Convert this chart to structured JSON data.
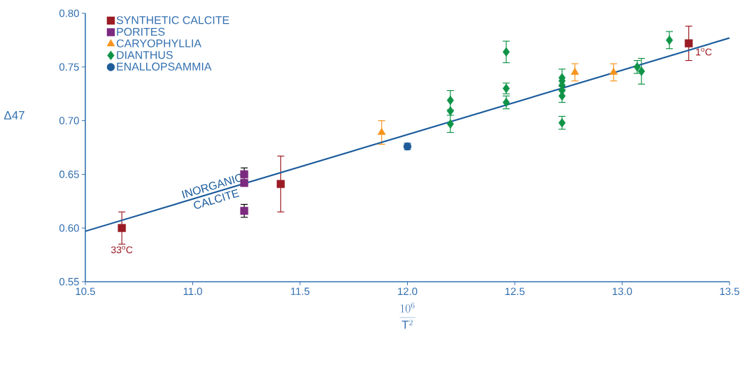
{
  "chart_data": {
    "type": "scatter",
    "xlabel": "\\frac{10^{6}}{\\mathrm{T}^{2}}",
    "ylabel": "Δ47",
    "xlim": [
      10.5,
      13.5
    ],
    "ylim": [
      0.55,
      0.8
    ],
    "xticks": [
      {
        "value": 10.5,
        "label": "10.5"
      },
      {
        "value": 11,
        "label": "11.0"
      },
      {
        "value": 11.5,
        "label": "11.5"
      },
      {
        "value": 12,
        "label": "12.0"
      },
      {
        "value": 12.5,
        "label": "12.5"
      },
      {
        "value": 13,
        "label": "13.0"
      },
      {
        "value": 13.5,
        "label": "13.5"
      }
    ],
    "yticks": [
      {
        "value": 0.55,
        "label": "0.55"
      },
      {
        "value": 0.6,
        "label": "0.60"
      },
      {
        "value": 0.65,
        "label": "0.65"
      },
      {
        "value": 0.7,
        "label": "0.70"
      },
      {
        "value": 0.75,
        "label": "0.75"
      },
      {
        "value": 0.8,
        "label": "0.80"
      }
    ],
    "grid": false,
    "legend": "top left",
    "series": [
      {
        "name": "SYNTHETIC CALCITE",
        "color": "#9b1c24",
        "marker": "square",
        "x": [
          10.67,
          11.41,
          13.31
        ],
        "values": [
          0.6,
          0.641,
          0.772
        ],
        "errors": [
          0.015,
          0.026,
          0.016
        ]
      },
      {
        "name": "PORITES",
        "color": "#7b2a7f",
        "marker": "square",
        "x": [
          11.24,
          11.24,
          11.24
        ],
        "values": [
          0.65,
          0.642,
          0.616
        ],
        "errors": [
          0.006,
          null,
          0.006
        ]
      },
      {
        "name": "CARYOPHYLLIA",
        "color": "#f7941d",
        "marker": "triangle",
        "x": [
          11.88,
          12.78,
          12.96
        ],
        "values": [
          0.689,
          0.745,
          0.745
        ],
        "errors": [
          0.011,
          0.008,
          0.008
        ]
      },
      {
        "name": "DIANTHUS",
        "color": "#0f9447",
        "marker": "diamond",
        "x": [
          12.2,
          12.2,
          12.2,
          12.46,
          12.46,
          12.46,
          12.72,
          12.72,
          12.72,
          12.72,
          12.72,
          12.72,
          13.07,
          13.09,
          13.22
        ],
        "values": [
          0.719,
          0.709,
          0.697,
          0.764,
          0.73,
          0.717,
          0.74,
          0.737,
          0.733,
          0.728,
          0.723,
          0.698,
          0.75,
          0.746,
          0.775
        ],
        "errors": [
          0.009,
          null,
          0.008,
          0.01,
          0.005,
          0.006,
          0.008,
          null,
          null,
          null,
          0.006,
          0.006,
          0.006,
          0.012,
          0.008
        ]
      },
      {
        "name": "ENALLOPSAMMIA",
        "color": "#1f5c99",
        "marker": "circle",
        "x": [
          12.0
        ],
        "values": [
          0.676
        ],
        "errors": [
          0.003
        ]
      },
      {
        "name": "INORGANIC CALCITE",
        "type": "line",
        "color": "#1a5b9c",
        "x": [
          10.5,
          13.5
        ],
        "values": [
          0.597,
          0.777
        ]
      }
    ],
    "annotations": [
      {
        "text": "33$^{o}$C",
        "x": 10.67,
        "y": 0.6
      },
      {
        "text": "1$^{o}$C",
        "x": 13.31,
        "y": 0.772
      }
    ]
  }
}
